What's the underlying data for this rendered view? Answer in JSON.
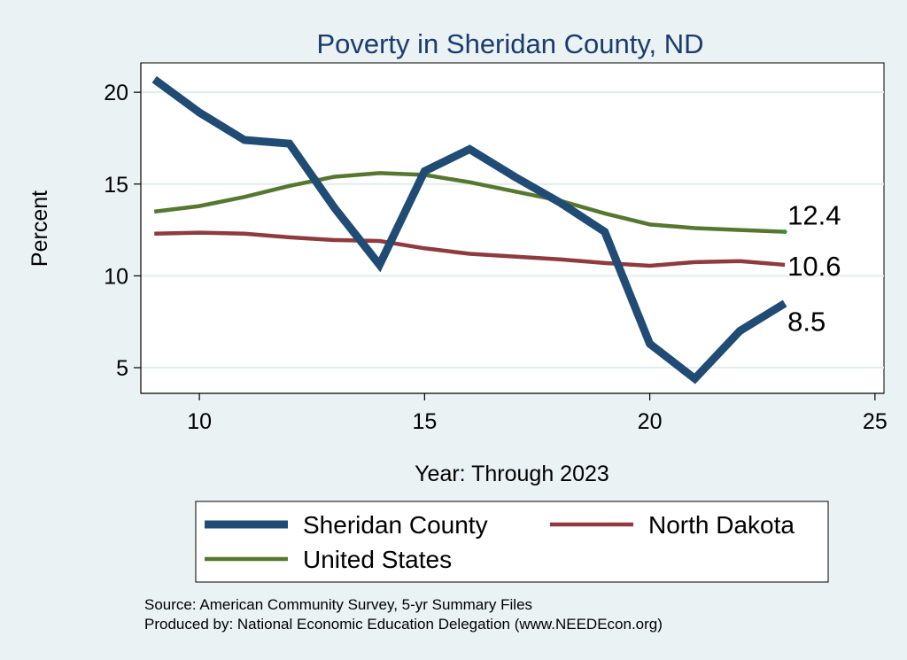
{
  "chart_data": {
    "type": "line",
    "title": "Poverty in Sheridan County, ND",
    "xlabel": "Year: Through 2023",
    "ylabel": "Percent",
    "xlim": [
      8.7,
      25.2
    ],
    "ylim": [
      3.6,
      21.6
    ],
    "xticks": [
      10,
      15,
      20,
      25
    ],
    "yticks": [
      5,
      10,
      15,
      20
    ],
    "grid": true,
    "legend_position": "bottom",
    "series": [
      {
        "name": "Sheridan County",
        "color": "#1f4b74",
        "x": [
          9,
          10,
          11,
          12,
          13,
          14,
          15,
          16,
          17,
          18,
          19,
          20,
          21,
          22,
          23
        ],
        "values": [
          20.7,
          18.9,
          17.4,
          17.2,
          13.7,
          10.6,
          15.7,
          16.9,
          15.4,
          14.0,
          12.4,
          6.3,
          4.4,
          7.0,
          8.5
        ],
        "end_label": "8.5"
      },
      {
        "name": "North Dakota",
        "color": "#8e3a3e",
        "x": [
          9,
          10,
          11,
          12,
          13,
          14,
          15,
          16,
          17,
          18,
          19,
          20,
          21,
          22,
          23
        ],
        "values": [
          12.3,
          12.35,
          12.3,
          12.1,
          11.95,
          11.9,
          11.5,
          11.2,
          11.05,
          10.9,
          10.7,
          10.55,
          10.75,
          10.8,
          10.6
        ],
        "end_label": "10.6"
      },
      {
        "name": "United States",
        "color": "#56772f",
        "x": [
          9,
          10,
          11,
          12,
          13,
          14,
          15,
          16,
          17,
          18,
          19,
          20,
          21,
          22,
          23
        ],
        "values": [
          13.5,
          13.8,
          14.3,
          14.9,
          15.4,
          15.6,
          15.5,
          15.1,
          14.6,
          14.1,
          13.4,
          12.8,
          12.6,
          12.5,
          12.4
        ],
        "end_label": "12.4"
      }
    ],
    "notes": [
      "Source: American Community Survey, 5-yr Summary Files",
      "Produced by: National Economic Education Delegation (www.NEEDEcon.org)"
    ]
  }
}
